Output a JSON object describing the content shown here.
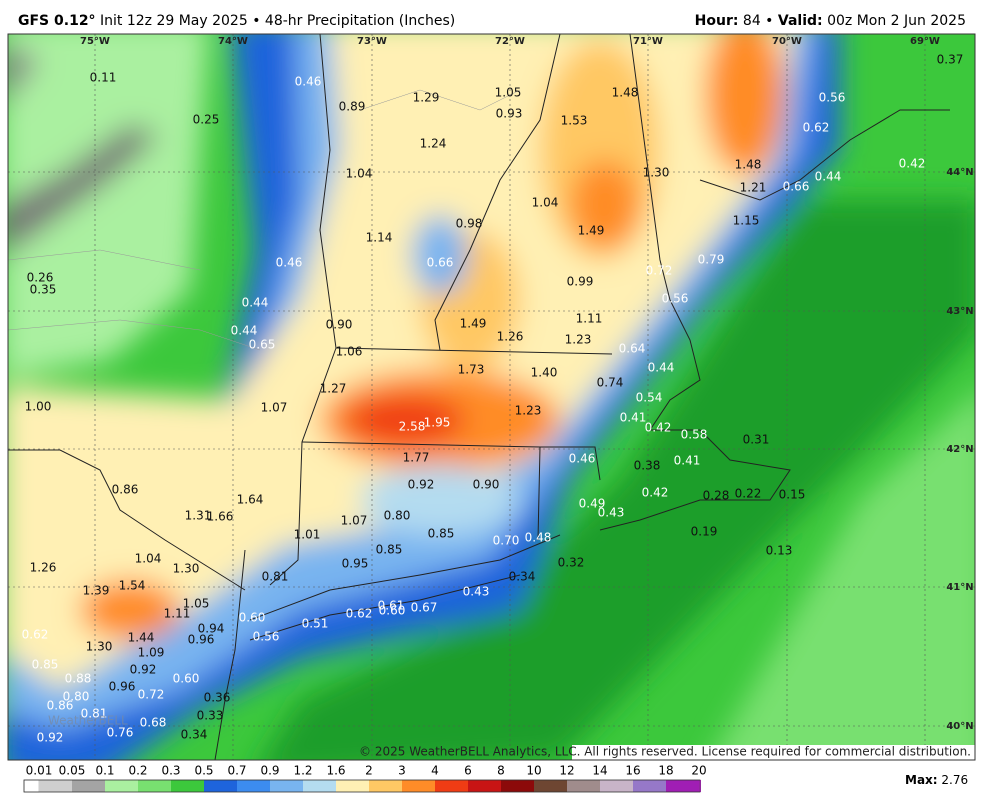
{
  "header": {
    "model": "GFS 0.12°",
    "title": "Init 12z 29 May 2025 • 48-hr Precipitation (Inches)",
    "hour_label": "Hour:",
    "hour_text": "84 •",
    "valid_label": "Valid:",
    "valid_text": "00z Mon 2 Jun 2025"
  },
  "map": {
    "longitudes": [
      "75°W",
      "74°W",
      "73°W",
      "72°W",
      "71°W",
      "70°W",
      "69°W"
    ],
    "latitudes": [
      "44°N",
      "43°N",
      "42°N",
      "41°N",
      "40°N"
    ],
    "values": [
      "0.11",
      "0.46",
      "0.89",
      "1.29",
      "1.05",
      "1.48",
      "0.37",
      "0.56",
      "0.25",
      "0.93",
      "1.53",
      "0.62",
      "1.24",
      "1.30",
      "1.48",
      "0.42",
      "1.04",
      "1.21",
      "0.66",
      "0.44",
      "1.04",
      "0.98",
      "1.49",
      "1.15",
      "1.14",
      "0.66",
      "0.46",
      "0.79",
      "0.72",
      "0.26",
      "0.35",
      "0.99",
      "0.56",
      "0.44",
      "1.11",
      "1.49",
      "1.26",
      "0.90",
      "0.44",
      "1.23",
      "0.65",
      "0.64",
      "1.06",
      "1.73",
      "1.40",
      "0.44",
      "0.74",
      "1.27",
      "0.54",
      "1.00",
      "1.07",
      "1.23",
      "0.41",
      "2.58",
      "1.95",
      "0.42",
      "0.58",
      "0.31",
      "1.77",
      "0.46",
      "0.38",
      "0.41",
      "0.92",
      "0.90",
      "0.86",
      "1.64",
      "0.42",
      "0.28",
      "0.22",
      "0.15",
      "1.31",
      "1.66",
      "0.80",
      "0.49",
      "1.07",
      "0.43",
      "1.01",
      "0.85",
      "0.19",
      "0.70",
      "0.48",
      "0.85",
      "0.13",
      "1.04",
      "1.26",
      "1.30",
      "0.95",
      "0.32",
      "0.81",
      "0.34",
      "1.54",
      "1.39",
      "1.05",
      "0.43",
      "0.61",
      "1.11",
      "0.60",
      "0.67",
      "0.62",
      "0.60",
      "0.51",
      "0.94",
      "0.56",
      "0.62",
      "1.44",
      "0.96",
      "1.30",
      "1.09",
      "0.85",
      "0.92",
      "0.88",
      "0.60",
      "0.96",
      "0.72",
      "0.80",
      "0.36",
      "0.86",
      "0.81",
      "0.33",
      "0.68",
      "0.76",
      "0.34",
      "0.92"
    ],
    "logo": "WeatherBELL",
    "copyright": "© 2025 WeatherBELL Analytics, LLC. All rights reserved. License required for commercial distribution."
  },
  "legend": {
    "labels": [
      "0.01",
      "0.05",
      "0.1",
      "0.2",
      "0.3",
      "0.5",
      "0.7",
      "0.9",
      "1.2",
      "1.6",
      "2",
      "3",
      "4",
      "6",
      "8",
      "10",
      "12",
      "14",
      "16",
      "18",
      "20"
    ],
    "colors": [
      "#cfcfcf",
      "#a4a4a4",
      "#aaf0a0",
      "#78e070",
      "#3cc83c",
      "#1e64dc",
      "#3c8cf0",
      "#78b4f0",
      "#b4dcf0",
      "#fff0b4",
      "#ffc864",
      "#ff8c28",
      "#f03c14",
      "#c81414",
      "#8c0a0a",
      "#6e4632",
      "#a08c8c",
      "#c8b4c8",
      "#9678c8",
      "#a01eb4",
      "#d21ee6"
    ],
    "max_label": "Max:",
    "max_value": "2.76"
  }
}
